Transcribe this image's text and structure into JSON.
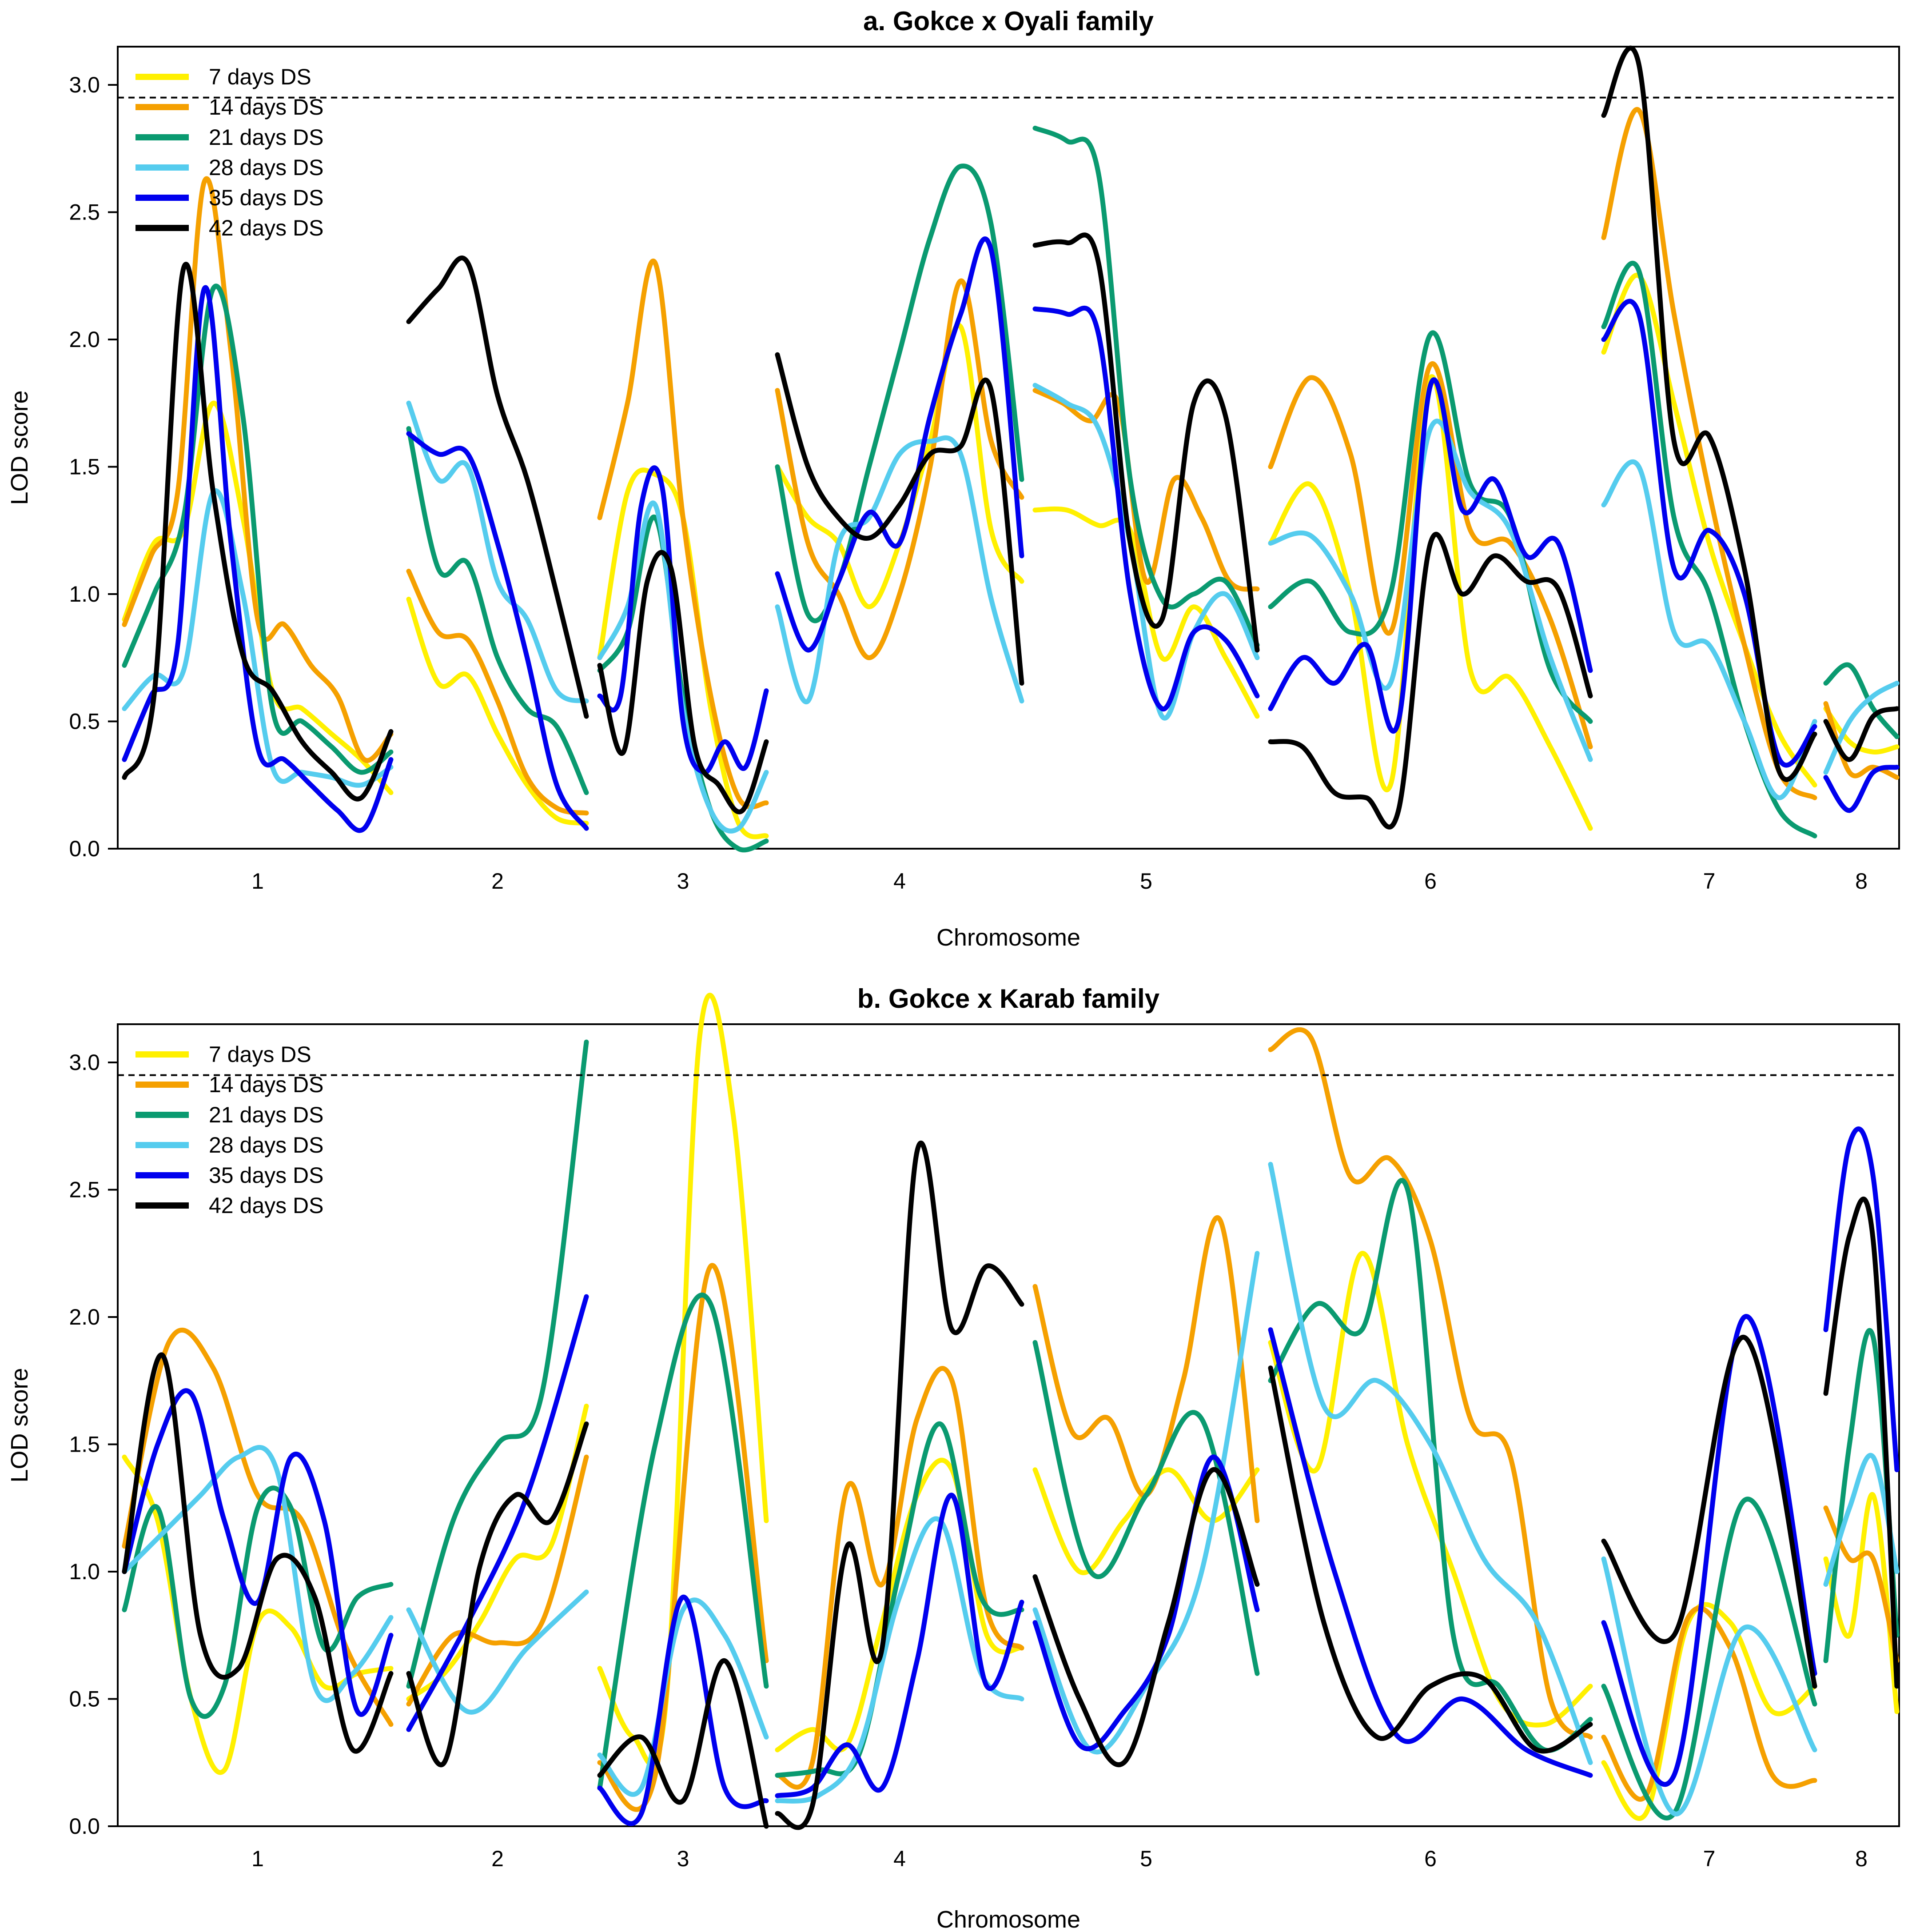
{
  "chart_data": [
    {
      "type": "line",
      "title": "a. Gokce x Oyali family",
      "xlabel": "Chromosome",
      "ylabel": "LOD score",
      "ylim": [
        0,
        3.15
      ],
      "yticks": [
        "0.0",
        "0.5",
        "1.0",
        "1.5",
        "2.0",
        "2.5",
        "3.0"
      ],
      "threshold": 2.95,
      "chromosomes": [
        "1",
        "2",
        "3",
        "4",
        "5",
        "6",
        "7",
        "8"
      ],
      "legend": [
        "7 days DS",
        "14 days DS",
        "21 days DS",
        "28 days DS",
        "35 days DS",
        "42 days DS"
      ],
      "series": [
        {
          "name": "7 days DS",
          "color": "#FFF000",
          "chromosome_values": [
            [
              0.9,
              1.2,
              1.25,
              1.75,
              1.3,
              0.62,
              0.55,
              0.45,
              0.35,
              0.22
            ],
            [
              0.98,
              0.65,
              0.68,
              0.45,
              0.25,
              0.12,
              0.1
            ],
            [
              0.75,
              1.4,
              1.47,
              1.3,
              0.55,
              0.1,
              0.05
            ],
            [
              1.5,
              1.3,
              1.2,
              0.95,
              1.2,
              1.6,
              2.05,
              1.25,
              1.05
            ],
            [
              1.33,
              1.33,
              1.27,
              1.25,
              0.75,
              0.95,
              0.75,
              0.52
            ],
            [
              1.2,
              1.43,
              1.0,
              0.25,
              1.85,
              0.7,
              0.67,
              0.4,
              0.08
            ],
            [
              1.95,
              2.25,
              1.75,
              1.2,
              0.8,
              0.45,
              0.25
            ],
            [
              0.55,
              0.42,
              0.38,
              0.4
            ]
          ]
        },
        {
          "name": "14 days DS",
          "color": "#F5A000",
          "chromosome_values": [
            [
              0.88,
              1.15,
              1.4,
              2.62,
              1.95,
              0.9,
              0.88,
              0.72,
              0.6,
              0.35,
              0.45
            ],
            [
              1.09,
              0.85,
              0.82,
              0.58,
              0.28,
              0.16,
              0.14
            ],
            [
              1.3,
              1.75,
              2.3,
              1.3,
              0.6,
              0.2,
              0.18
            ],
            [
              1.8,
              1.2,
              1.0,
              0.75,
              1.0,
              1.5,
              2.23,
              1.6,
              1.38
            ],
            [
              1.8,
              1.75,
              1.68,
              1.75,
              1.05,
              1.45,
              1.3,
              1.05,
              1.02
            ],
            [
              1.5,
              1.85,
              1.55,
              0.85,
              1.9,
              1.25,
              1.2,
              0.9,
              0.4
            ],
            [
              2.4,
              2.9,
              2.1,
              1.4,
              0.8,
              0.3,
              0.2
            ],
            [
              0.57,
              0.3,
              0.32,
              0.28
            ]
          ]
        },
        {
          "name": "21 days DS",
          "color": "#0A9A70",
          "chromosome_values": [
            [
              0.72,
              1.0,
              1.3,
              2.2,
              1.7,
              0.55,
              0.5,
              0.4,
              0.3,
              0.38
            ],
            [
              1.65,
              1.1,
              1.12,
              0.75,
              0.55,
              0.48,
              0.22
            ],
            [
              0.7,
              0.85,
              1.3,
              0.6,
              0.15,
              0.0,
              0.03
            ],
            [
              1.5,
              0.92,
              1.05,
              1.5,
              1.95,
              2.4,
              2.68,
              2.45,
              1.45
            ],
            [
              2.83,
              2.78,
              2.65,
              1.45,
              0.98,
              1.0,
              1.05,
              0.8
            ],
            [
              0.95,
              1.05,
              0.85,
              1.0,
              2.02,
              1.43,
              1.3,
              0.7,
              0.5
            ],
            [
              2.05,
              2.27,
              1.3,
              1.0,
              0.5,
              0.15,
              0.05
            ],
            [
              0.65,
              0.72,
              0.55,
              0.44
            ]
          ]
        },
        {
          "name": "28 days DS",
          "color": "#55CCEE",
          "chromosome_values": [
            [
              0.55,
              0.68,
              0.7,
              1.4,
              1.0,
              0.32,
              0.3,
              0.28,
              0.25,
              0.32
            ],
            [
              1.75,
              1.45,
              1.5,
              1.05,
              0.9,
              0.62,
              0.58
            ],
            [
              0.75,
              0.95,
              1.35,
              0.55,
              0.15,
              0.08,
              0.3
            ],
            [
              0.95,
              0.58,
              1.2,
              1.3,
              1.55,
              1.6,
              1.55,
              0.98,
              0.58
            ],
            [
              1.82,
              1.75,
              1.65,
              1.2,
              0.52,
              0.85,
              1.0,
              0.75
            ],
            [
              1.2,
              1.23,
              1.0,
              0.65,
              1.65,
              1.4,
              1.25,
              0.75,
              0.35
            ],
            [
              1.35,
              1.5,
              0.85,
              0.8,
              0.5,
              0.2,
              0.5
            ],
            [
              0.3,
              0.5,
              0.6,
              0.65
            ]
          ]
        },
        {
          "name": "35 days DS",
          "color": "#0000EE",
          "chromosome_values": [
            [
              0.35,
              0.6,
              0.8,
              2.2,
              1.2,
              0.4,
              0.35,
              0.25,
              0.15,
              0.08,
              0.35
            ],
            [
              1.63,
              1.55,
              1.55,
              1.2,
              0.75,
              0.25,
              0.08
            ],
            [
              0.6,
              0.6,
              1.35,
              1.42,
              0.5,
              0.3,
              0.42,
              0.32,
              0.62
            ],
            [
              1.08,
              0.78,
              1.05,
              1.32,
              1.2,
              1.7,
              2.1,
              2.35,
              1.15
            ],
            [
              2.12,
              2.1,
              2.02,
              1.0,
              0.55,
              0.85,
              0.82,
              0.6
            ],
            [
              0.55,
              0.75,
              0.65,
              0.8,
              0.5,
              1.82,
              1.33,
              1.45,
              1.15,
              1.2,
              0.7
            ],
            [
              2.0,
              2.1,
              1.1,
              1.25,
              1.0,
              0.35,
              0.48
            ],
            [
              0.28,
              0.15,
              0.3,
              0.32
            ]
          ]
        },
        {
          "name": "42 days DS",
          "color": "#000000",
          "chromosome_values": [
            [
              0.28,
              0.6,
              2.28,
              1.4,
              0.76,
              0.62,
              0.42,
              0.3,
              0.2,
              0.46
            ],
            [
              2.07,
              2.2,
              2.3,
              1.78,
              1.45,
              1.0,
              0.52
            ],
            [
              0.72,
              0.38,
              1.05,
              1.1,
              0.4,
              0.25,
              0.15,
              0.42
            ],
            [
              1.94,
              1.5,
              1.3,
              1.22,
              1.35,
              1.55,
              1.58,
              1.8,
              0.65
            ],
            [
              2.37,
              2.38,
              2.3,
              1.2,
              0.9,
              1.75,
              1.7,
              0.78
            ],
            [
              0.42,
              0.4,
              0.22,
              0.2,
              0.15,
              1.2,
              1.0,
              1.15,
              1.05,
              1.02,
              0.6
            ],
            [
              2.88,
              3.08,
              1.6,
              1.62,
              1.1,
              0.3,
              0.45
            ],
            [
              0.5,
              0.35,
              0.52,
              0.55
            ]
          ]
        }
      ]
    },
    {
      "type": "line",
      "title": "b. Gokce x Karab family",
      "xlabel": "Chromosome",
      "ylabel": "LOD score",
      "ylim": [
        0,
        3.15
      ],
      "yticks": [
        "0.0",
        "0.5",
        "1.0",
        "1.5",
        "2.0",
        "2.5",
        "3.0"
      ],
      "threshold": 2.95,
      "chromosomes": [
        "1",
        "2",
        "3",
        "4",
        "5",
        "6",
        "7",
        "8"
      ],
      "legend": [
        "7 days DS",
        "14 days DS",
        "21 days DS",
        "28 days DS",
        "35 days DS",
        "42 days DS"
      ],
      "series": [
        {
          "name": "7 days DS",
          "color": "#FFF000",
          "chromosome_values": [
            [
              1.45,
              1.2,
              0.5,
              0.22,
              0.8,
              0.78,
              0.55,
              0.6,
              0.62
            ],
            [
              0.5,
              0.6,
              0.8,
              1.05,
              1.1,
              1.65
            ],
            [
              0.62,
              0.35,
              0.5,
              3.1,
              2.8,
              1.2
            ],
            [
              0.3,
              0.38,
              0.32,
              0.8,
              1.3,
              1.4,
              0.75,
              0.7
            ],
            [
              1.4,
              1.0,
              1.2,
              1.4,
              1.2,
              1.4
            ],
            [
              1.9,
              1.4,
              2.25,
              1.5,
              1.0,
              0.5,
              0.4,
              0.55
            ],
            [
              0.25,
              0.05,
              0.8,
              0.8,
              0.45,
              0.55
            ],
            [
              1.05,
              0.75,
              1.3,
              0.45
            ]
          ]
        },
        {
          "name": "14 days DS",
          "color": "#F5A000",
          "chromosome_values": [
            [
              1.1,
              1.9,
              1.8,
              1.3,
              1.2,
              0.7,
              0.4
            ],
            [
              0.48,
              0.75,
              0.72,
              0.8,
              1.45
            ],
            [
              0.25,
              0.2,
              2.2,
              0.65
            ],
            [
              0.2,
              0.25,
              1.33,
              0.95,
              1.6,
              1.75,
              0.85,
              0.7
            ],
            [
              2.12,
              1.55,
              1.6,
              1.3,
              1.75,
              2.38,
              1.2
            ],
            [
              3.05,
              3.1,
              2.55,
              2.62,
              2.3,
              1.6,
              1.45,
              0.5,
              0.35
            ],
            [
              0.35,
              0.12,
              0.82,
              0.7,
              0.2,
              0.18
            ],
            [
              1.25,
              1.05,
              1.05,
              0.65
            ]
          ]
        },
        {
          "name": "21 days DS",
          "color": "#0A9A70",
          "chromosome_values": [
            [
              0.85,
              1.25,
              0.5,
              0.55,
              1.25,
              1.25,
              0.7,
              0.9,
              0.95
            ],
            [
              0.55,
              1.2,
              1.5,
              1.7,
              3.08
            ],
            [
              0.15,
              1.5,
              2.05,
              0.55
            ],
            [
              0.2,
              0.22,
              0.28,
              1.0,
              1.58,
              0.9,
              0.85
            ],
            [
              1.9,
              1.0,
              1.3,
              1.6,
              0.6
            ],
            [
              1.75,
              2.05,
              1.95,
              2.5,
              0.75,
              0.55,
              0.3,
              0.42
            ],
            [
              0.55,
              0.05,
              1.28,
              0.48
            ],
            [
              0.65,
              1.5,
              1.92,
              0.75
            ]
          ]
        },
        {
          "name": "28 days DS",
          "color": "#55CCEE",
          "chromosome_values": [
            [
              1.0,
              1.15,
              1.3,
              1.45,
              1.4,
              0.55,
              0.6,
              0.82
            ],
            [
              0.85,
              0.45,
              0.7,
              0.92
            ],
            [
              0.28,
              0.15,
              0.85,
              0.75,
              0.35
            ],
            [
              0.1,
              0.12,
              0.3,
              0.9,
              1.2,
              0.6,
              0.5
            ],
            [
              0.85,
              0.3,
              0.55,
              1.0,
              2.25
            ],
            [
              2.6,
              1.65,
              1.75,
              1.5,
              1.05,
              0.8,
              0.25
            ],
            [
              1.05,
              0.05,
              0.78,
              0.3
            ],
            [
              0.95,
              1.25,
              1.45,
              1.0
            ]
          ]
        },
        {
          "name": "35 days DS",
          "color": "#0000EE",
          "chromosome_values": [
            [
              1.0,
              1.5,
              1.7,
              1.2,
              0.88,
              1.45,
              1.2,
              0.45,
              0.75
            ],
            [
              0.38,
              0.8,
              1.3,
              2.08
            ],
            [
              0.15,
              0.05,
              0.9,
              0.15,
              0.1
            ],
            [
              0.12,
              0.15,
              0.32,
              0.15,
              0.65,
              1.3,
              0.55,
              0.88
            ],
            [
              0.8,
              0.32,
              0.45,
              0.75,
              1.45,
              0.85
            ],
            [
              1.95,
              1.0,
              0.35,
              0.5,
              0.3,
              0.2
            ],
            [
              0.8,
              0.2,
              2.0,
              0.6
            ],
            [
              1.95,
              2.68,
              2.55,
              1.4
            ]
          ]
        },
        {
          "name": "42 days DS",
          "color": "#000000",
          "chromosome_values": [
            [
              1.0,
              1.85,
              0.75,
              0.62,
              1.05,
              0.9,
              0.3,
              0.6
            ],
            [
              0.6,
              0.25,
              1.02,
              1.3,
              1.2,
              1.58
            ],
            [
              0.2,
              0.35,
              0.1,
              0.65,
              0.0
            ],
            [
              0.05,
              0.08,
              1.1,
              0.7,
              2.65,
              1.95,
              2.2,
              2.05
            ],
            [
              0.98,
              0.5,
              0.25,
              0.8,
              1.4,
              0.95
            ],
            [
              1.8,
              0.8,
              0.35,
              0.55,
              0.58,
              0.3,
              0.4
            ],
            [
              1.12,
              0.75,
              1.92,
              0.55
            ],
            [
              1.7,
              2.32,
              2.3,
              0.55
            ]
          ]
        }
      ]
    }
  ]
}
